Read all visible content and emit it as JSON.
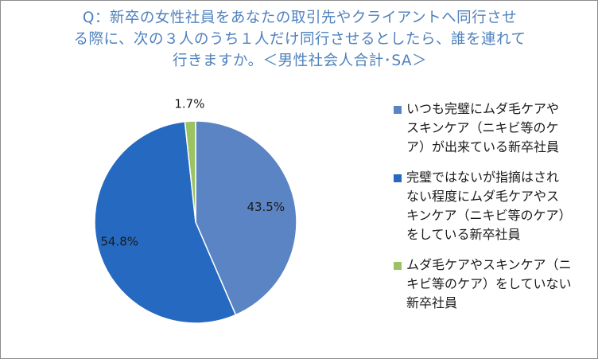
{
  "title_lines": [
    "Q：新卒の女性社員をあなたの取引先やクライアントへ同行させ",
    "る際に、次の３人のうち１人だけ同行させるとしたら、誰を連れて",
    "行きますか。＜男性社会人合計･SA＞"
  ],
  "chart_data": {
    "type": "pie",
    "categories": [
      "いつも完璧にムダ毛ケアやスキンケア（ニキビ等のケア）が出来ている新卒社員",
      "完璧ではないが指摘はされない程度にムダ毛ケアやスキンケア（ニキビ等のケア）をしている新卒社員",
      "ムダ毛ケアやスキンケア（ニキビ等のケア）をしていない新卒社員"
    ],
    "values": [
      43.5,
      54.8,
      1.7
    ],
    "data_labels": [
      "43.5%",
      "54.8%",
      "1.7%"
    ],
    "colors": [
      "#5b84c4",
      "#2569c1",
      "#9bc263"
    ],
    "legend_position": "right",
    "legend_labels": [
      "いつも完璧にムダ毛ケアや\nスキンケア（ニキビ等のケ\nア）が出来ている新卒社員",
      "完璧ではないが指摘はされ\nない程度にムダ毛ケアやス\nキンケア（ニキビ等のケア）\nをしている新卒社員",
      "ムダ毛ケアやスキンケア（ニ\nキビ等のケア）をしていない\n新卒社員"
    ]
  }
}
